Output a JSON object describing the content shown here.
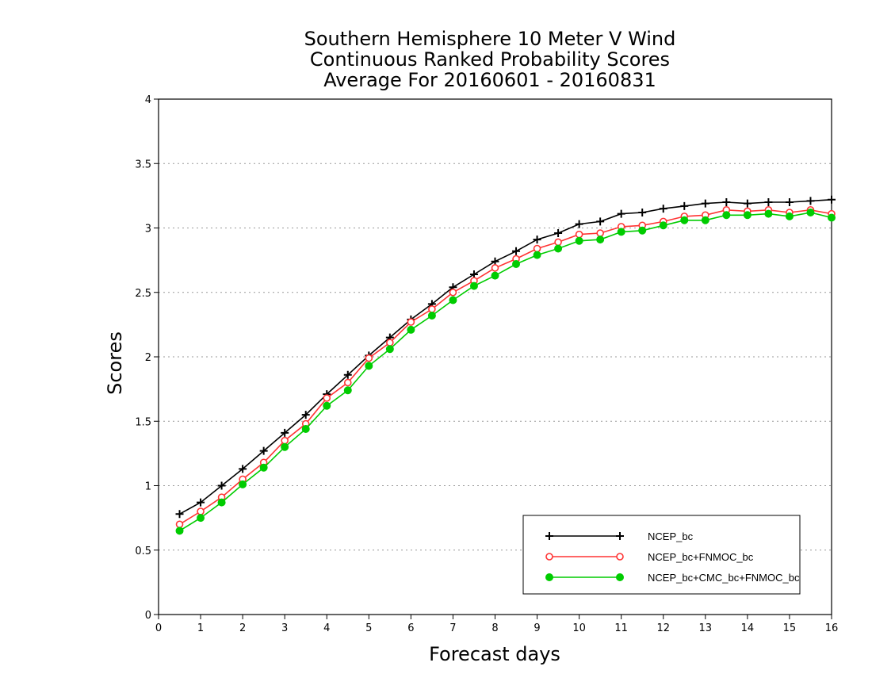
{
  "chart_data": {
    "type": "line",
    "title": "Southern Hemisphere 10 Meter V Wind",
    "subtitle_lines": [
      "Continuous Ranked Probability Scores",
      "Average For 20160601 - 20160831"
    ],
    "xlabel": "Forecast days",
    "ylabel": "Scores",
    "xlim": [
      0,
      16
    ],
    "ylim": [
      0,
      4
    ],
    "x_ticks": [
      "0",
      "1",
      "2",
      "3",
      "4",
      "5",
      "6",
      "7",
      "8",
      "9",
      "10",
      "11",
      "12",
      "13",
      "14",
      "15",
      "16"
    ],
    "y_ticks": [
      "0",
      "0.5",
      "1",
      "1.5",
      "2",
      "2.5",
      "3",
      "3.5",
      "4"
    ],
    "grid": "horizontal dotted",
    "legend_position": "bottom-right",
    "x": [
      0.5,
      1,
      1.5,
      2,
      2.5,
      3,
      3.5,
      4,
      4.5,
      5,
      5.5,
      6,
      6.5,
      7,
      7.5,
      8,
      8.5,
      9,
      9.5,
      10,
      10.5,
      11,
      11.5,
      12,
      12.5,
      13,
      13.5,
      14,
      14.5,
      15,
      15.5,
      16
    ],
    "series": [
      {
        "name": "NCEP_bc",
        "color": "#000000",
        "marker": "plus",
        "values": [
          0.78,
          0.87,
          1.0,
          1.13,
          1.27,
          1.41,
          1.55,
          1.71,
          1.86,
          2.01,
          2.15,
          2.29,
          2.41,
          2.54,
          2.64,
          2.74,
          2.82,
          2.91,
          2.96,
          3.03,
          3.05,
          3.11,
          3.12,
          3.15,
          3.17,
          3.19,
          3.2,
          3.19,
          3.2,
          3.2,
          3.21,
          3.22
        ]
      },
      {
        "name": "NCEP_bc+FNMOC_bc",
        "color": "#ff3333",
        "marker": "open-circle",
        "values": [
          0.7,
          0.8,
          0.91,
          1.05,
          1.18,
          1.35,
          1.48,
          1.68,
          1.8,
          1.99,
          2.11,
          2.27,
          2.37,
          2.5,
          2.59,
          2.69,
          2.76,
          2.84,
          2.89,
          2.95,
          2.96,
          3.01,
          3.02,
          3.05,
          3.09,
          3.1,
          3.14,
          3.13,
          3.14,
          3.12,
          3.14,
          3.11
        ]
      },
      {
        "name": "NCEP_bc+CMC_bc+FNMOC_bc",
        "color": "#00cc00",
        "marker": "filled-circle",
        "values": [
          0.65,
          0.75,
          0.87,
          1.01,
          1.14,
          1.3,
          1.44,
          1.62,
          1.74,
          1.93,
          2.06,
          2.21,
          2.32,
          2.44,
          2.55,
          2.63,
          2.72,
          2.79,
          2.84,
          2.9,
          2.91,
          2.97,
          2.98,
          3.02,
          3.06,
          3.06,
          3.1,
          3.1,
          3.11,
          3.09,
          3.12,
          3.08
        ]
      }
    ]
  }
}
